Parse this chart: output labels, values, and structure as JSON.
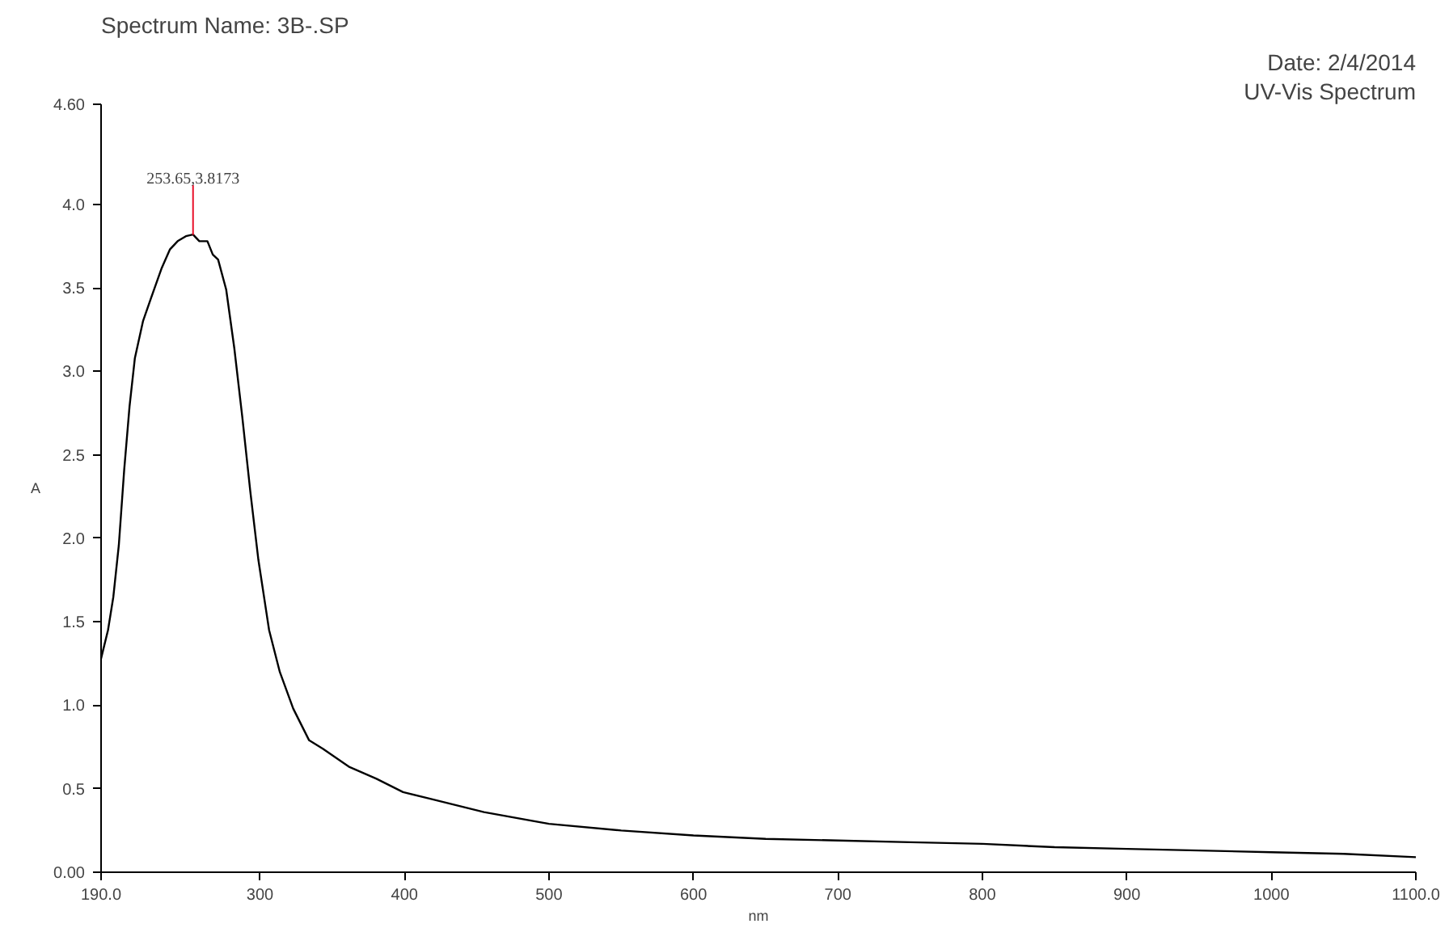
{
  "chart_data": {
    "type": "line",
    "title": "Spectrum Name: 3B-.SP",
    "xlabel": "nm",
    "ylabel": "A",
    "annotations": [
      "Date: 2/4/2014",
      "UV-Vis Spectrum",
      {
        "text": "253.65,3.8173",
        "x": 253.65,
        "y": 3.8173
      }
    ],
    "series": [
      {
        "color": "#000000",
        "x": [
          190,
          194.8,
          198.5,
          202.3,
          206,
          209.7,
          213.4,
          219,
          224.6,
          232,
          237.6,
          243,
          248.7,
          253.65,
          258,
          263.6,
          267.3,
          271,
          276.6,
          282.2,
          287.7,
          293.3,
          298.9,
          306.3,
          313.7,
          323,
          334,
          343.5,
          362,
          380.6,
          399,
          417.8,
          455,
          500,
          550,
          600,
          650,
          700,
          750,
          800,
          850,
          900,
          950,
          1000,
          1050,
          1100
        ],
        "values": [
          1.28,
          1.45,
          1.65,
          1.96,
          2.41,
          2.79,
          3.08,
          3.3,
          3.44,
          3.62,
          3.73,
          3.78,
          3.81,
          3.82,
          3.78,
          3.78,
          3.7,
          3.67,
          3.49,
          3.14,
          2.73,
          2.28,
          1.87,
          1.45,
          1.2,
          0.98,
          0.79,
          0.74,
          0.63,
          0.56,
          0.48,
          0.44,
          0.36,
          0.29,
          0.25,
          0.22,
          0.2,
          0.19,
          0.18,
          0.17,
          0.15,
          0.14,
          0.13,
          0.12,
          0.11,
          0.09
        ]
      }
    ],
    "xlim": [
      190,
      1100
    ],
    "ylim": [
      0,
      4.6
    ],
    "xticks": [
      {
        "value": 190,
        "label": "190.0"
      },
      300,
      400,
      500,
      600,
      700,
      800,
      900,
      1000,
      {
        "value": 1100,
        "label": "1100.0"
      }
    ],
    "yticks": [
      {
        "value": 0,
        "label": "0.00"
      },
      0.5,
      {
        "value": 1,
        "label": "1.0"
      },
      1.5,
      {
        "value": 2,
        "label": "2.0"
      },
      2.5,
      {
        "value": 3,
        "label": "3.0"
      },
      3.5,
      {
        "value": 4,
        "label": "4.0"
      },
      {
        "value": 4.6,
        "label": "4.60"
      }
    ],
    "grid": false,
    "marker": "none",
    "line_style": "solid"
  }
}
